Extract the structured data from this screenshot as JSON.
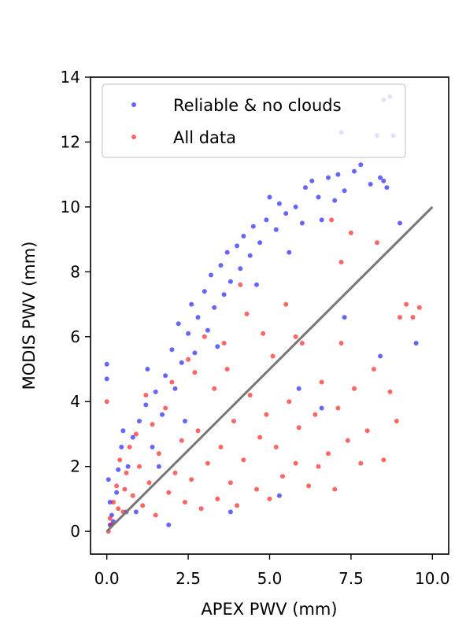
{
  "chart_data": {
    "type": "scatter",
    "title": "",
    "xlabel": "APEX PWV (mm)",
    "ylabel": "MODIS PWV (mm)",
    "xlim": [
      -0.5,
      10.5
    ],
    "ylim": [
      -0.7,
      14.0
    ],
    "xticks": [
      "0.0",
      "2.5",
      "5.0",
      "7.5",
      "10.0"
    ],
    "xtick_values": [
      0,
      2.5,
      5,
      7.5,
      10
    ],
    "yticks": [
      "0",
      "2",
      "4",
      "6",
      "8",
      "10",
      "12",
      "14"
    ],
    "ytick_values": [
      0,
      2,
      4,
      6,
      8,
      10,
      12,
      14
    ],
    "grid": false,
    "legend": {
      "position": "top-left",
      "entries": [
        "Reliable & no clouds",
        "All data"
      ]
    },
    "reference_line": {
      "x": [
        0,
        10
      ],
      "y": [
        0,
        10
      ],
      "color": "#777777"
    },
    "series": [
      {
        "name": "Reliable & no clouds",
        "color": "#0000ff",
        "approx_points": 1500,
        "points": [
          [
            0.0,
            5.15
          ],
          [
            0.0,
            4.7
          ],
          [
            0.05,
            1.6
          ],
          [
            0.1,
            0.9
          ],
          [
            0.15,
            0.5
          ],
          [
            0.2,
            0.3
          ],
          [
            0.3,
            1.2
          ],
          [
            0.35,
            1.9
          ],
          [
            0.45,
            2.6
          ],
          [
            0.5,
            3.1
          ],
          [
            0.6,
            0.6
          ],
          [
            0.65,
            2.0
          ],
          [
            0.8,
            2.9
          ],
          [
            1.0,
            3.4
          ],
          [
            1.2,
            3.9
          ],
          [
            1.25,
            5.0
          ],
          [
            1.4,
            2.6
          ],
          [
            1.5,
            4.3
          ],
          [
            1.7,
            3.6
          ],
          [
            1.8,
            4.8
          ],
          [
            2.0,
            5.6
          ],
          [
            2.1,
            4.4
          ],
          [
            2.2,
            6.4
          ],
          [
            2.3,
            5.2
          ],
          [
            2.5,
            6.1
          ],
          [
            2.6,
            7.0
          ],
          [
            2.7,
            5.5
          ],
          [
            2.8,
            6.6
          ],
          [
            3.0,
            7.4
          ],
          [
            3.1,
            6.2
          ],
          [
            3.2,
            7.9
          ],
          [
            3.3,
            6.9
          ],
          [
            3.5,
            8.2
          ],
          [
            3.6,
            7.3
          ],
          [
            3.7,
            8.6
          ],
          [
            3.8,
            7.7
          ],
          [
            4.0,
            8.8
          ],
          [
            4.1,
            8.1
          ],
          [
            4.2,
            9.1
          ],
          [
            4.4,
            8.5
          ],
          [
            4.5,
            9.4
          ],
          [
            4.7,
            8.9
          ],
          [
            4.9,
            9.6
          ],
          [
            5.0,
            10.3
          ],
          [
            5.2,
            9.3
          ],
          [
            5.3,
            10.1
          ],
          [
            5.5,
            9.8
          ],
          [
            5.6,
            8.6
          ],
          [
            5.8,
            10.0
          ],
          [
            6.0,
            9.5
          ],
          [
            6.1,
            10.6
          ],
          [
            6.3,
            10.8
          ],
          [
            6.5,
            10.3
          ],
          [
            6.6,
            9.6
          ],
          [
            6.8,
            10.9
          ],
          [
            7.0,
            10.2
          ],
          [
            7.1,
            11.0
          ],
          [
            7.3,
            10.5
          ],
          [
            7.6,
            11.1
          ],
          [
            7.8,
            11.3
          ],
          [
            8.1,
            10.7
          ],
          [
            8.4,
            10.9
          ],
          [
            8.5,
            10.8
          ],
          [
            8.6,
            10.6
          ],
          [
            8.7,
            13.4
          ],
          [
            8.5,
            13.3
          ],
          [
            9.0,
            9.5
          ],
          [
            9.5,
            5.8
          ],
          [
            8.4,
            5.4
          ],
          [
            7.2,
            12.3
          ],
          [
            8.3,
            12.2
          ],
          [
            8.8,
            12.2
          ],
          [
            6.6,
            3.8
          ],
          [
            5.9,
            4.4
          ],
          [
            7.3,
            6.6
          ],
          [
            5.3,
            1.1
          ],
          [
            3.8,
            0.6
          ],
          [
            1.9,
            0.2
          ],
          [
            0.9,
            0.6
          ],
          [
            1.6,
            2.0
          ],
          [
            2.4,
            3.4
          ],
          [
            3.4,
            5.7
          ],
          [
            4.6,
            7.6
          ],
          [
            0.1,
            0.2
          ]
        ]
      },
      {
        "name": "All data",
        "color": "#ff0000",
        "approx_points": 1500,
        "points": [
          [
            0.0,
            4.0
          ],
          [
            0.1,
            0.4
          ],
          [
            0.2,
            0.9
          ],
          [
            0.3,
            1.4
          ],
          [
            0.4,
            2.2
          ],
          [
            0.5,
            0.6
          ],
          [
            0.6,
            1.8
          ],
          [
            0.7,
            2.6
          ],
          [
            0.8,
            1.1
          ],
          [
            0.9,
            3.0
          ],
          [
            1.0,
            2.0
          ],
          [
            1.1,
            0.8
          ],
          [
            1.2,
            4.2
          ],
          [
            1.3,
            1.5
          ],
          [
            1.4,
            3.3
          ],
          [
            1.5,
            0.5
          ],
          [
            1.6,
            2.4
          ],
          [
            1.8,
            3.8
          ],
          [
            1.9,
            1.2
          ],
          [
            2.0,
            4.6
          ],
          [
            2.1,
            1.8
          ],
          [
            2.3,
            2.8
          ],
          [
            2.4,
            0.9
          ],
          [
            2.5,
            5.3
          ],
          [
            2.6,
            1.6
          ],
          [
            2.8,
            3.1
          ],
          [
            2.9,
            0.7
          ],
          [
            3.0,
            6.0
          ],
          [
            3.1,
            2.1
          ],
          [
            3.3,
            4.4
          ],
          [
            3.4,
            1.0
          ],
          [
            3.5,
            2.6
          ],
          [
            3.7,
            5.0
          ],
          [
            3.8,
            1.5
          ],
          [
            3.9,
            3.4
          ],
          [
            4.0,
            0.8
          ],
          [
            4.2,
            2.2
          ],
          [
            4.3,
            6.7
          ],
          [
            4.4,
            4.2
          ],
          [
            4.6,
            1.3
          ],
          [
            4.7,
            2.9
          ],
          [
            4.9,
            3.6
          ],
          [
            5.0,
            1.0
          ],
          [
            5.1,
            5.4
          ],
          [
            5.2,
            2.6
          ],
          [
            5.4,
            1.7
          ],
          [
            5.5,
            7.0
          ],
          [
            5.6,
            4.0
          ],
          [
            5.8,
            2.1
          ],
          [
            5.9,
            3.2
          ],
          [
            6.0,
            5.8
          ],
          [
            6.2,
            1.4
          ],
          [
            6.4,
            3.6
          ],
          [
            6.5,
            2.0
          ],
          [
            6.6,
            4.6
          ],
          [
            6.8,
            2.4
          ],
          [
            7.0,
            1.3
          ],
          [
            7.1,
            3.8
          ],
          [
            7.2,
            5.8
          ],
          [
            7.4,
            2.8
          ],
          [
            7.5,
            9.2
          ],
          [
            7.6,
            4.4
          ],
          [
            7.8,
            2.1
          ],
          [
            8.0,
            3.1
          ],
          [
            8.2,
            5.0
          ],
          [
            8.3,
            8.9
          ],
          [
            8.5,
            2.2
          ],
          [
            8.7,
            4.3
          ],
          [
            8.9,
            3.4
          ],
          [
            9.0,
            6.6
          ],
          [
            9.2,
            7.0
          ],
          [
            9.4,
            6.6
          ],
          [
            9.6,
            6.9
          ],
          [
            6.9,
            9.6
          ],
          [
            7.2,
            8.3
          ],
          [
            5.8,
            6.0
          ],
          [
            4.8,
            6.1
          ],
          [
            3.6,
            5.8
          ],
          [
            2.7,
            4.9
          ],
          [
            4.1,
            7.6
          ],
          [
            0.05,
            0.0
          ],
          [
            0.15,
            0.2
          ],
          [
            0.35,
            0.7
          ],
          [
            0.55,
            1.3
          ]
        ]
      }
    ]
  }
}
